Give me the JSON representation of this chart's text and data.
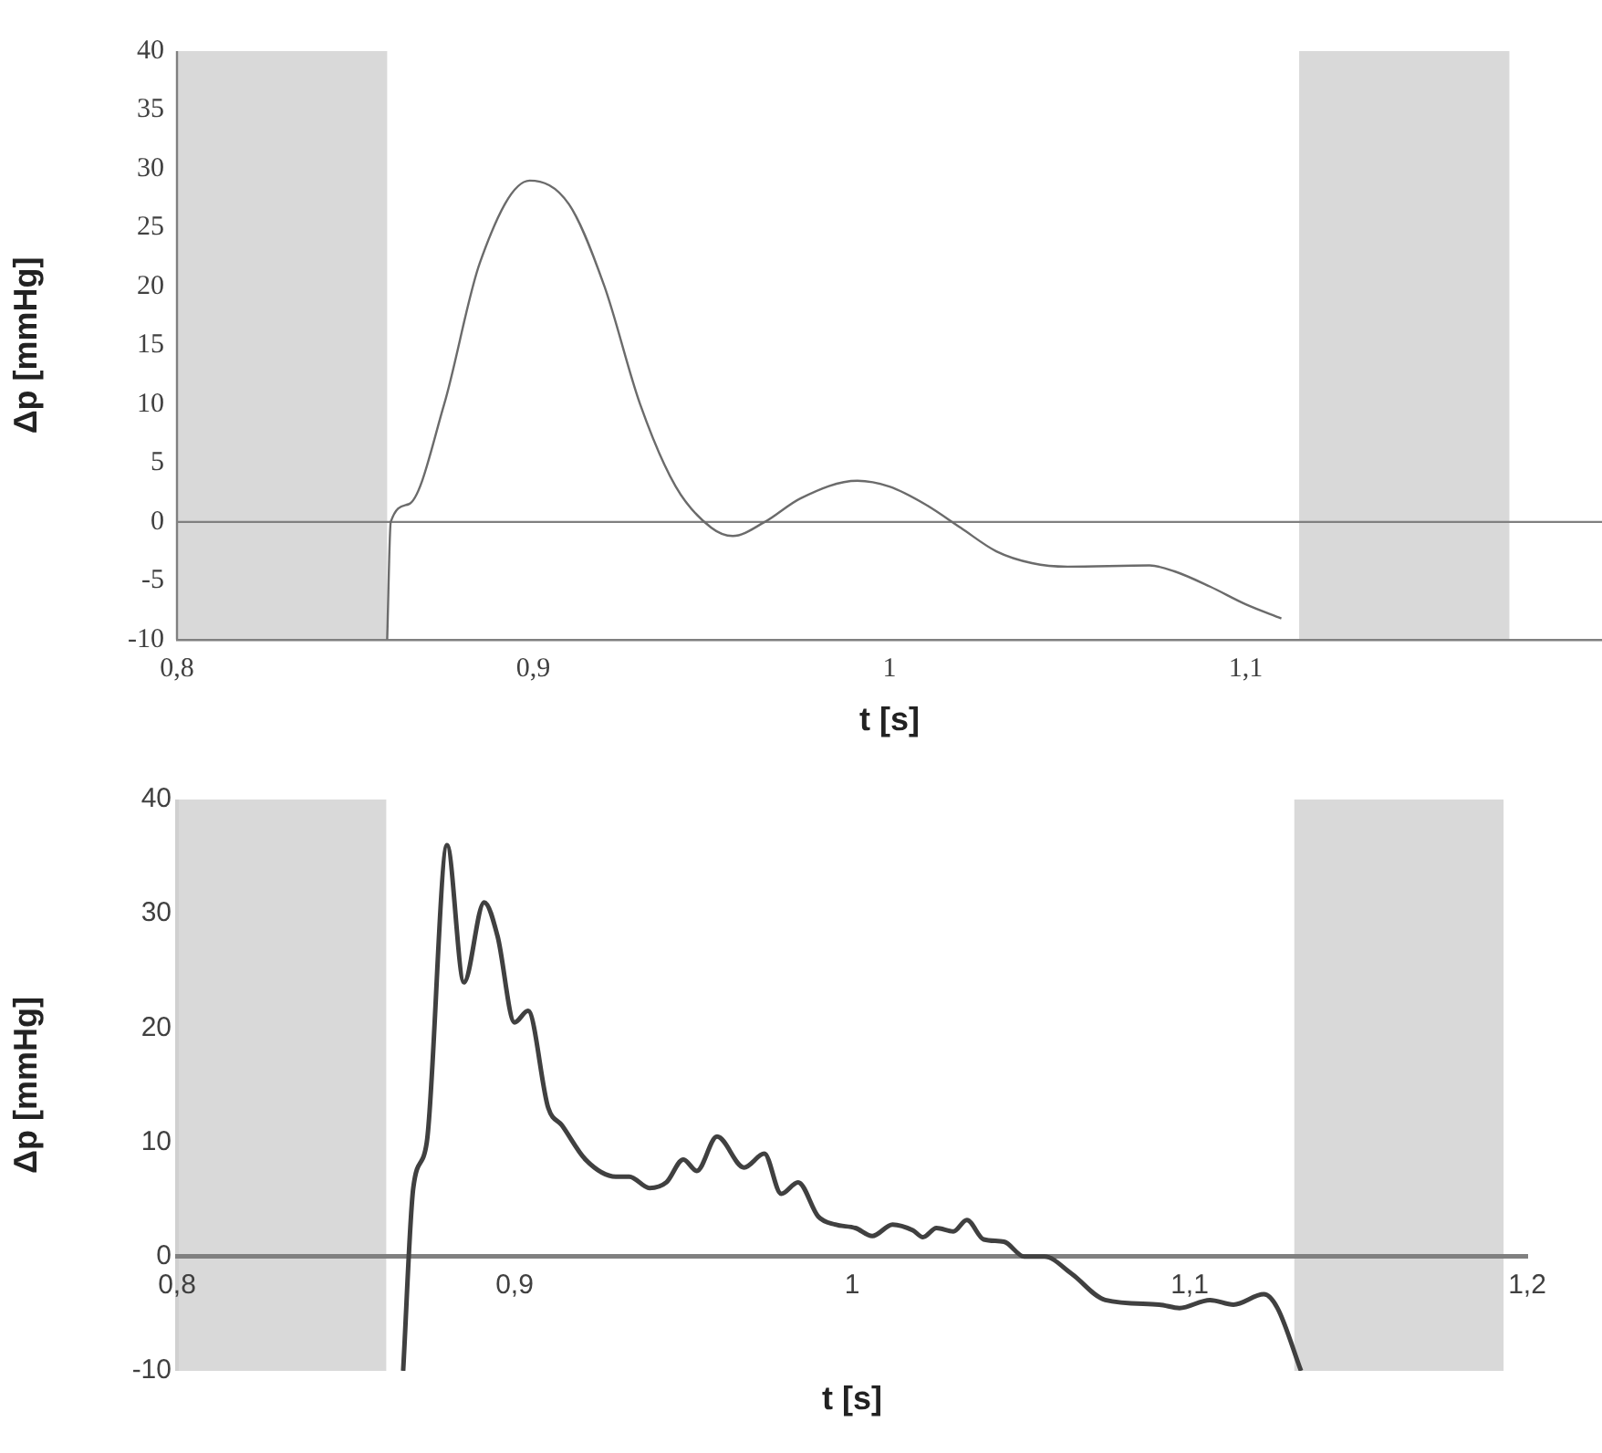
{
  "chart_data": [
    {
      "type": "line",
      "xlabel": "t [s]",
      "ylabel": "Δp [mmHg]",
      "xlim": [
        0.8,
        1.2
      ],
      "ylim": [
        -10,
        40
      ],
      "xticks": [
        {
          "value": 0.8,
          "label": "0,8"
        },
        {
          "value": 0.9,
          "label": "0,9"
        },
        {
          "value": 1,
          "label": "1"
        },
        {
          "value": 1.1,
          "label": "1,1"
        }
      ],
      "yticks": [
        -10,
        -5,
        0,
        5,
        10,
        15,
        20,
        25,
        30,
        35,
        40
      ],
      "ref_lines": [
        {
          "axis": "y",
          "value": 0,
          "color": "#808080"
        }
      ],
      "bands": [
        {
          "axis": "x",
          "from": 0.8,
          "to": 0.859,
          "color": "#d9d9d9"
        },
        {
          "axis": "x",
          "from": 1.115,
          "to": 1.174,
          "color": "#d9d9d9"
        }
      ],
      "series": [
        {
          "color": "#6b6b6b",
          "x": [
            0.859,
            0.86,
            0.865,
            0.875,
            0.885,
            0.899,
            0.91,
            0.92,
            0.93,
            0.94,
            0.95,
            0.956,
            0.965,
            0.975,
            0.991,
            1.0,
            1.01,
            1.02,
            1.03,
            1.04,
            1.05,
            1.073,
            1.08,
            1.09,
            1.1,
            1.11
          ],
          "values": [
            -10,
            0,
            1.5,
            10,
            22,
            29,
            27,
            20,
            10,
            3,
            -0.5,
            -1.2,
            0,
            2,
            3.5,
            3,
            1.5,
            -0.5,
            -2.5,
            -3.5,
            -3.8,
            -3.7,
            -4.2,
            -5.5,
            -7,
            -8.2
          ]
        }
      ]
    },
    {
      "type": "line",
      "xlabel": "t [s]",
      "ylabel": "Δp [mmHg]",
      "xlim": [
        0.8,
        1.2
      ],
      "ylim": [
        -10,
        40
      ],
      "xticks": [
        {
          "value": 0.8,
          "label": "0,8"
        },
        {
          "value": 0.9,
          "label": "0,9"
        },
        {
          "value": 1,
          "label": "1"
        },
        {
          "value": 1.1,
          "label": "1,1"
        },
        {
          "value": 1.2,
          "label": "1,2"
        }
      ],
      "yticks": [
        -10,
        0,
        10,
        20,
        30,
        40
      ],
      "bands": [
        {
          "axis": "x",
          "from": 0.8,
          "to": 0.862,
          "color": "#d9d9d9"
        },
        {
          "axis": "x",
          "from": 1.131,
          "to": 1.193,
          "color": "#d9d9d9"
        }
      ],
      "series": [
        {
          "color": "#404040",
          "x": [
            0.867,
            0.87,
            0.874,
            0.88,
            0.885,
            0.891,
            0.895,
            0.9,
            0.904,
            0.91,
            0.914,
            0.921,
            0.93,
            0.934,
            0.94,
            0.945,
            0.95,
            0.954,
            0.96,
            0.968,
            0.974,
            0.979,
            0.984,
            0.99,
            0.995,
            1.001,
            1.006,
            1.012,
            1.018,
            1.021,
            1.025,
            1.03,
            1.034,
            1.039,
            1.045,
            1.051,
            1.057,
            1.065,
            1.075,
            1.091,
            1.097,
            1.106,
            1.113,
            1.122,
            1.126,
            1.133
          ],
          "values": [
            -10,
            6,
            10,
            36,
            24,
            31,
            28,
            20.5,
            21.5,
            13,
            11.5,
            8.5,
            7,
            7,
            6,
            6.5,
            8.5,
            7.5,
            10.5,
            7.8,
            9,
            5.5,
            6.5,
            3.5,
            2.8,
            2.5,
            1.8,
            2.8,
            2.3,
            1.7,
            2.5,
            2.2,
            3.2,
            1.5,
            1.3,
            0,
            0,
            -1.5,
            -3.8,
            -4.2,
            -4.5,
            -3.8,
            -4.2,
            -3.3,
            -4.5,
            -10
          ]
        }
      ]
    }
  ]
}
